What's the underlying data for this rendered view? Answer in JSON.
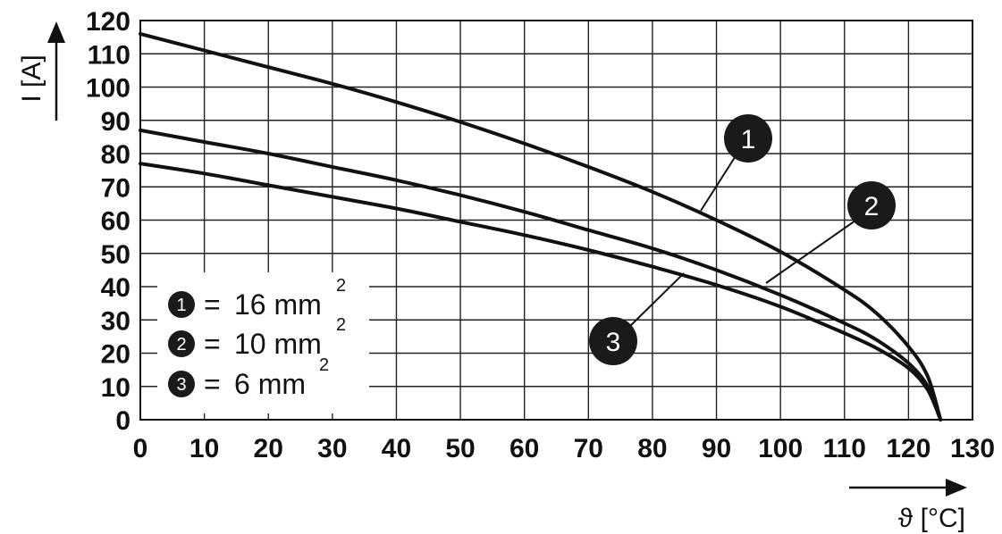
{
  "chart_data": {
    "type": "line",
    "title": "",
    "xlabel": "ϑ [°C]",
    "ylabel": "I [A]",
    "xlim": [
      0,
      130
    ],
    "ylim": [
      0,
      120
    ],
    "x_ticks": [
      0,
      10,
      20,
      30,
      40,
      50,
      60,
      70,
      80,
      90,
      100,
      110,
      120,
      130
    ],
    "y_ticks": [
      0,
      10,
      20,
      30,
      40,
      50,
      60,
      70,
      80,
      90,
      100,
      110,
      120
    ],
    "x_tick_labels": [
      "0",
      "10",
      "20",
      "30",
      "40",
      "50",
      "60",
      "70",
      "80",
      "90",
      "100",
      "110",
      "120",
      "130"
    ],
    "y_tick_labels": [
      "0",
      "10",
      "20",
      "30",
      "40",
      "50",
      "60",
      "70",
      "80",
      "90",
      "100",
      "110",
      "120"
    ],
    "grid": true,
    "legend_position": "bottom-left",
    "series": [
      {
        "id": "1",
        "x": [
          0,
          10,
          20,
          30,
          40,
          50,
          60,
          70,
          80,
          90,
          100,
          110,
          115,
          120,
          123,
          125
        ],
        "y": [
          116,
          111,
          106,
          101,
          95.5,
          89.5,
          83,
          76,
          68.5,
          60,
          50.5,
          39,
          32,
          22,
          13,
          0
        ]
      },
      {
        "id": "2",
        "x": [
          0,
          10,
          20,
          30,
          40,
          50,
          60,
          70,
          80,
          90,
          100,
          110,
          115,
          120,
          123,
          125
        ],
        "y": [
          87,
          83.5,
          80,
          76,
          72,
          67.5,
          62.5,
          57,
          51.5,
          45,
          37.5,
          29,
          24,
          17,
          10,
          0
        ]
      },
      {
        "id": "3",
        "x": [
          0,
          10,
          20,
          30,
          40,
          50,
          60,
          70,
          80,
          90,
          100,
          110,
          115,
          120,
          123,
          125
        ],
        "y": [
          77,
          74,
          70.5,
          67,
          63.5,
          59.5,
          55.5,
          51,
          46,
          40.5,
          34,
          26,
          21.5,
          15.5,
          9,
          0
        ]
      }
    ],
    "legend": [
      {
        "badge": "1",
        "eq": "=",
        "value": "16 mm",
        "sup": "2"
      },
      {
        "badge": "2",
        "eq": "=",
        "value": "10 mm",
        "sup": "2"
      },
      {
        "badge": "3",
        "eq": "=",
        "value": "6 mm",
        "sup": "2"
      }
    ],
    "callouts": [
      {
        "label": "1"
      },
      {
        "label": "2"
      },
      {
        "label": "3"
      }
    ]
  }
}
